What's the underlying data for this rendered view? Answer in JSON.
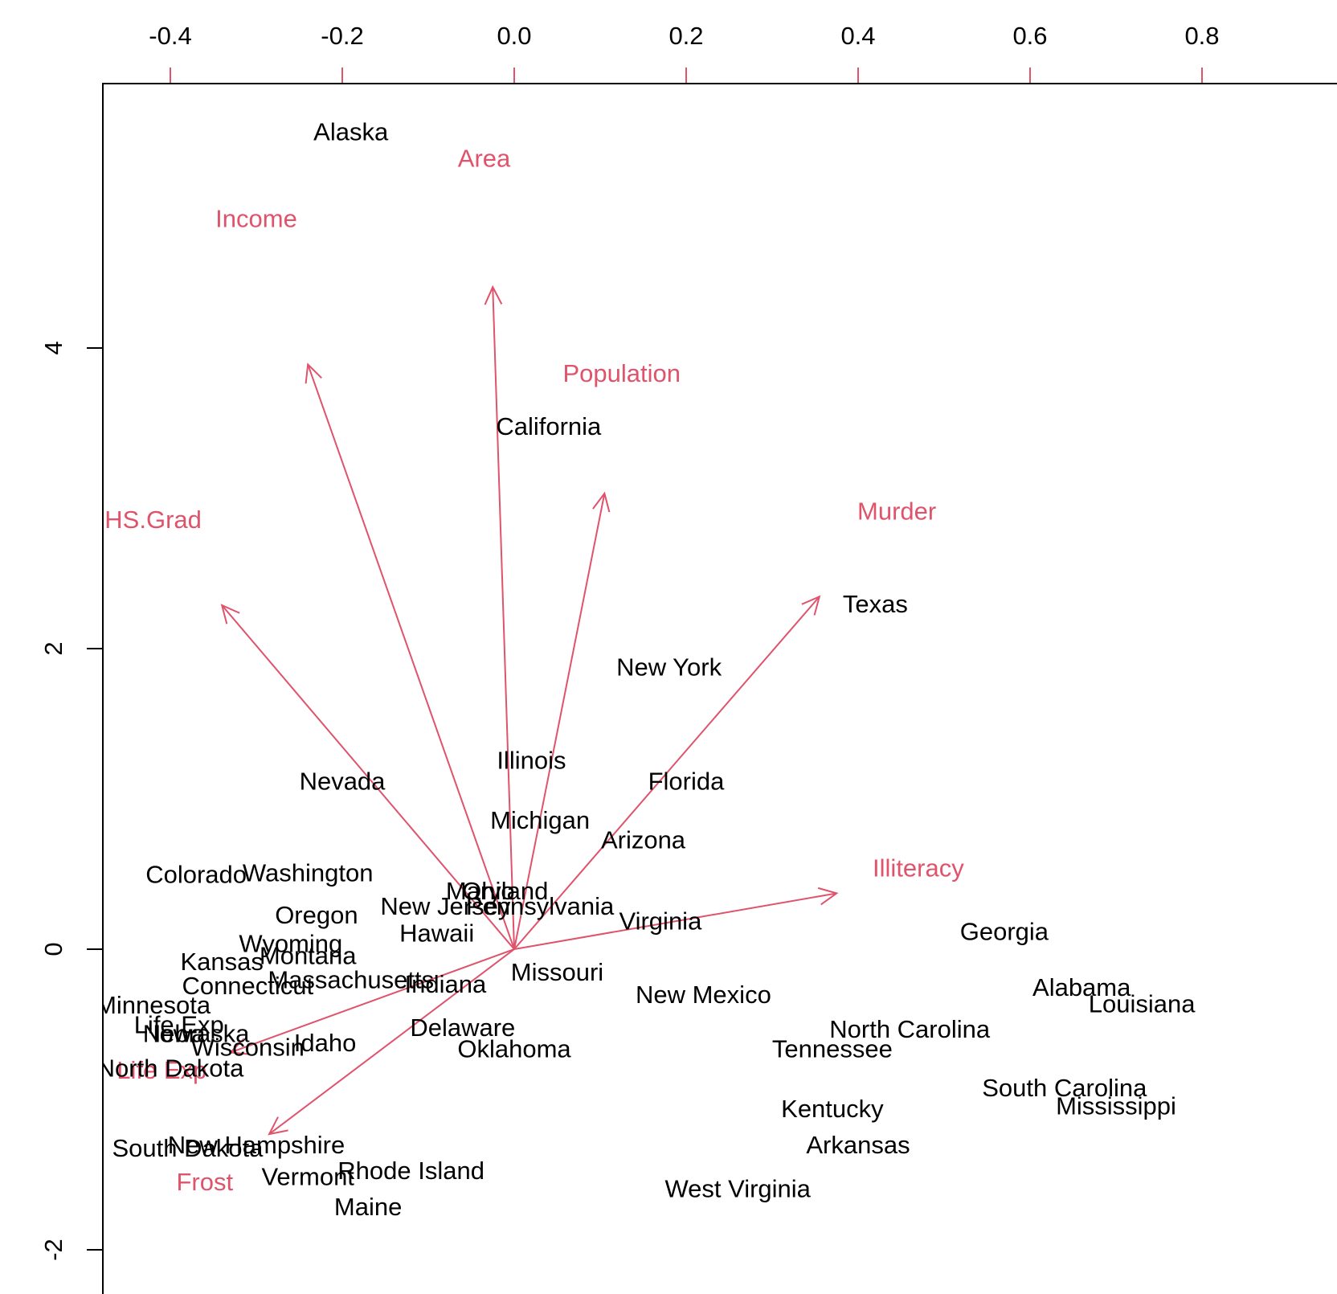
{
  "chart_data": {
    "type": "scatter",
    "subtype": "biplot",
    "title": "",
    "xlabel": "",
    "ylabel": "",
    "colors": {
      "points": "#000000",
      "loadings": "#DF536B",
      "frame": "#000000"
    },
    "primary_axes": {
      "x": {
        "ticks": [],
        "tick_labels": []
      },
      "y": {
        "range": [
          -2.2,
          5.8
        ],
        "ticks": [
          -2,
          0,
          2,
          4
        ],
        "tick_labels": [
          "-2",
          "0",
          "2",
          "4"
        ],
        "side": "left"
      }
    },
    "secondary_axes": {
      "x": {
        "range": [
          -0.4,
          0.9
        ],
        "ticks": [
          -0.4,
          -0.2,
          0.0,
          0.2,
          0.4,
          0.6,
          0.8
        ],
        "tick_labels": [
          "-0.4",
          "-0.2",
          "0.0",
          "0.2",
          "0.4",
          "0.6",
          "0.8"
        ],
        "side": "top"
      }
    },
    "points": [
      {
        "label": "Alaska",
        "x": -0.19,
        "y": 5.44
      },
      {
        "label": "California",
        "x": 0.04,
        "y": 3.48
      },
      {
        "label": "Texas",
        "x": 0.42,
        "y": 2.3
      },
      {
        "label": "New York",
        "x": 0.18,
        "y": 1.88
      },
      {
        "label": "Illinois",
        "x": 0.02,
        "y": 1.26
      },
      {
        "label": "Florida",
        "x": 0.2,
        "y": 1.12
      },
      {
        "label": "Nevada",
        "x": -0.2,
        "y": 1.12
      },
      {
        "label": "Michigan",
        "x": 0.03,
        "y": 0.86
      },
      {
        "label": "Arizona",
        "x": 0.15,
        "y": 0.73
      },
      {
        "label": "Colorado",
        "x": -0.37,
        "y": 0.5
      },
      {
        "label": "Washington",
        "x": -0.24,
        "y": 0.51
      },
      {
        "label": "Maryland",
        "x": -0.02,
        "y": 0.39
      },
      {
        "label": "Ohio",
        "x": -0.03,
        "y": 0.39
      },
      {
        "label": "New Jersey",
        "x": -0.08,
        "y": 0.29
      },
      {
        "label": "Pennsylvania",
        "x": 0.03,
        "y": 0.29
      },
      {
        "label": "Oregon",
        "x": -0.23,
        "y": 0.23
      },
      {
        "label": "Virginia",
        "x": 0.17,
        "y": 0.19
      },
      {
        "label": "Hawaii",
        "x": -0.09,
        "y": 0.11
      },
      {
        "label": "Georgia",
        "x": 0.57,
        "y": 0.12
      },
      {
        "label": "Wyoming",
        "x": -0.26,
        "y": 0.04
      },
      {
        "label": "Montana",
        "x": -0.24,
        "y": -0.04
      },
      {
        "label": "Kansas",
        "x": -0.34,
        "y": -0.08
      },
      {
        "label": "Missouri",
        "x": 0.05,
        "y": -0.15
      },
      {
        "label": "Connecticut",
        "x": -0.31,
        "y": -0.24
      },
      {
        "label": "Massachusetts",
        "x": -0.19,
        "y": -0.2
      },
      {
        "label": "Indiana",
        "x": -0.08,
        "y": -0.23
      },
      {
        "label": "Minnesota",
        "x": -0.42,
        "y": -0.37
      },
      {
        "label": "New Mexico",
        "x": 0.22,
        "y": -0.3
      },
      {
        "label": "Alabama",
        "x": 0.66,
        "y": -0.25
      },
      {
        "label": "Louisiana",
        "x": 0.73,
        "y": -0.36
      },
      {
        "label": "Life Exp",
        "x": -0.39,
        "y": -0.5
      },
      {
        "label": "Iowa",
        "x": -0.39,
        "y": -0.56
      },
      {
        "label": "Nebraska",
        "x": -0.37,
        "y": -0.56
      },
      {
        "label": "Idaho",
        "x": -0.22,
        "y": -0.62
      },
      {
        "label": "Wisconsin",
        "x": -0.31,
        "y": -0.65
      },
      {
        "label": "Delaware",
        "x": -0.06,
        "y": -0.52
      },
      {
        "label": "Oklahoma",
        "x": 0.0,
        "y": -0.66
      },
      {
        "label": "North Carolina",
        "x": 0.46,
        "y": -0.53
      },
      {
        "label": "Tennessee",
        "x": 0.37,
        "y": -0.66
      },
      {
        "label": "North Dakota",
        "x": -0.4,
        "y": -0.79
      },
      {
        "label": "South Carolina",
        "x": 0.64,
        "y": -0.92
      },
      {
        "label": "Mississippi",
        "x": 0.7,
        "y": -1.04
      },
      {
        "label": "Kentucky",
        "x": 0.37,
        "y": -1.06
      },
      {
        "label": "Arkansas",
        "x": 0.4,
        "y": -1.3
      },
      {
        "label": "South Dakota",
        "x": -0.38,
        "y": -1.32
      },
      {
        "label": "New Hampshire",
        "x": -0.3,
        "y": -1.3
      },
      {
        "label": "Rhode Island",
        "x": -0.12,
        "y": -1.47
      },
      {
        "label": "Vermont",
        "x": -0.24,
        "y": -1.51
      },
      {
        "label": "West Virginia",
        "x": 0.26,
        "y": -1.59
      },
      {
        "label": "Maine",
        "x": -0.17,
        "y": -1.71
      }
    ],
    "loadings": [
      {
        "label": "Area",
        "x": -0.025,
        "y": 0.77,
        "label_x": -0.035,
        "label_y": 0.92
      },
      {
        "label": "Income",
        "x": -0.24,
        "y": 0.68,
        "label_x": -0.3,
        "label_y": 0.85
      },
      {
        "label": "Population",
        "x": 0.105,
        "y": 0.53,
        "label_x": 0.125,
        "label_y": 0.67
      },
      {
        "label": "Murder",
        "x": 0.355,
        "y": 0.41,
        "label_x": 0.445,
        "label_y": 0.51
      },
      {
        "label": "HS.Grad",
        "x": -0.34,
        "y": 0.4,
        "label_x": -0.42,
        "label_y": 0.5
      },
      {
        "label": "Illiteracy",
        "x": 0.375,
        "y": 0.065,
        "label_x": 0.47,
        "label_y": 0.095
      },
      {
        "label": "Life Exp",
        "x": -0.33,
        "y": -0.12,
        "label_x": -0.41,
        "label_y": -0.14
      },
      {
        "label": "Frost",
        "x": -0.285,
        "y": -0.215,
        "label_x": -0.36,
        "label_y": -0.27
      }
    ]
  }
}
